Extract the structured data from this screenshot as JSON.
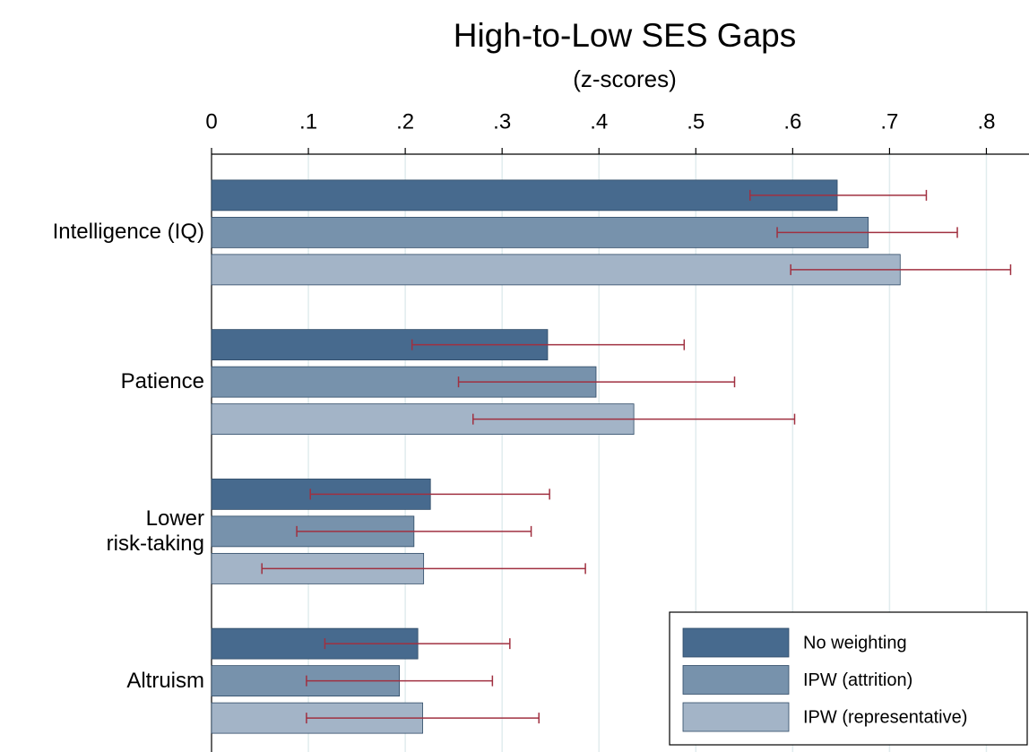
{
  "chart_data": {
    "type": "bar",
    "orientation": "horizontal",
    "title": "High-to-Low SES Gaps",
    "subtitle": "(z-scores)",
    "categories": [
      "Intelligence (IQ)",
      "Patience",
      "Lower\nrisk-taking",
      "Altruism"
    ],
    "series": [
      {
        "name": "No weighting",
        "color": "#476a8e",
        "values": [
          0.646,
          0.347,
          0.226,
          0.213
        ],
        "ci_low": [
          0.556,
          0.207,
          0.102,
          0.117
        ],
        "ci_high": [
          0.738,
          0.488,
          0.349,
          0.308
        ]
      },
      {
        "name": "IPW (attrition)",
        "color": "#7792ac",
        "values": [
          0.678,
          0.397,
          0.209,
          0.194
        ],
        "ci_low": [
          0.584,
          0.255,
          0.088,
          0.098
        ],
        "ci_high": [
          0.77,
          0.54,
          0.33,
          0.29
        ]
      },
      {
        "name": "IPW (representative)",
        "color": "#a3b4c7",
        "values": [
          0.711,
          0.436,
          0.219,
          0.218
        ],
        "ci_low": [
          0.598,
          0.27,
          0.052,
          0.098
        ],
        "ci_high": [
          0.825,
          0.602,
          0.386,
          0.338
        ]
      }
    ],
    "error_color": "#a03040",
    "xlim": [
      0,
      0.844
    ],
    "xticks": [
      0,
      {
        "value": 0.1,
        "label": ".1"
      },
      {
        "value": 0.2,
        "label": ".2"
      },
      {
        "value": 0.3,
        "label": ".3"
      },
      {
        "value": 0.4,
        "label": ".4"
      },
      {
        "value": 0.5,
        "label": ".5"
      },
      {
        "value": 0.6,
        "label": ".6"
      },
      {
        "value": 0.7,
        "label": ".7"
      },
      {
        "value": 0.8,
        "label": ".8"
      }
    ],
    "grid": true,
    "legend": "bottom-right"
  }
}
